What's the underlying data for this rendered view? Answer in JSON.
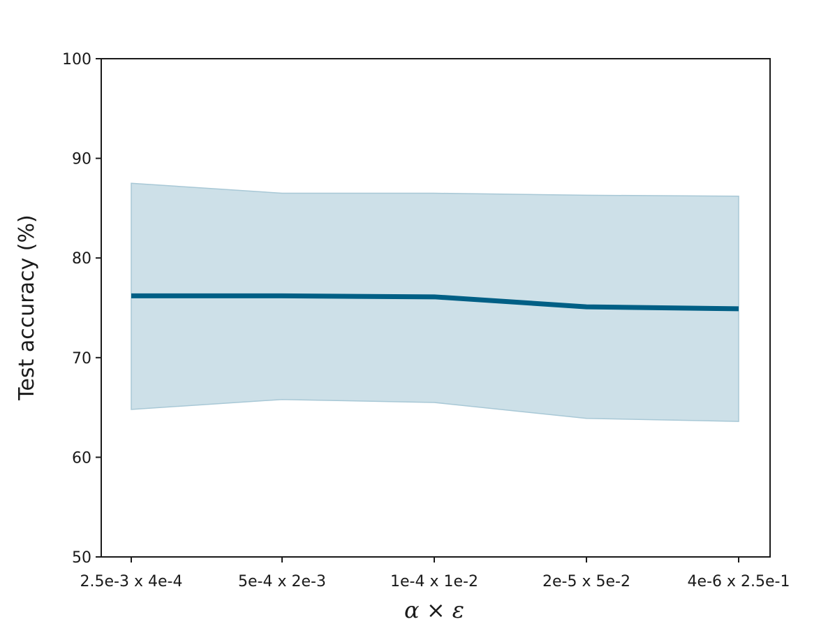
{
  "chart_data": {
    "type": "line",
    "title": "",
    "xlabel": "α × ε",
    "ylabel": "Test accuracy (%)",
    "categories": [
      "2.5e-3 x 4e-4",
      "5e-4 x 2e-3",
      "1e-4 x 1e-2",
      "2e-5 x 5e-2",
      "4e-6 x 2.5e-1"
    ],
    "ylim": [
      50,
      100
    ],
    "yticks": [
      50,
      60,
      70,
      80,
      90,
      100
    ],
    "grid": false,
    "series": [
      {
        "values": [
          76.2,
          76.2,
          76.1,
          75.1,
          74.9
        ],
        "band_upper": [
          87.5,
          86.5,
          86.5,
          86.3,
          86.2
        ],
        "band_lower": [
          64.8,
          65.8,
          65.5,
          63.9,
          63.6
        ],
        "color": "#005f85",
        "band_color": "#cde0e8"
      }
    ]
  }
}
